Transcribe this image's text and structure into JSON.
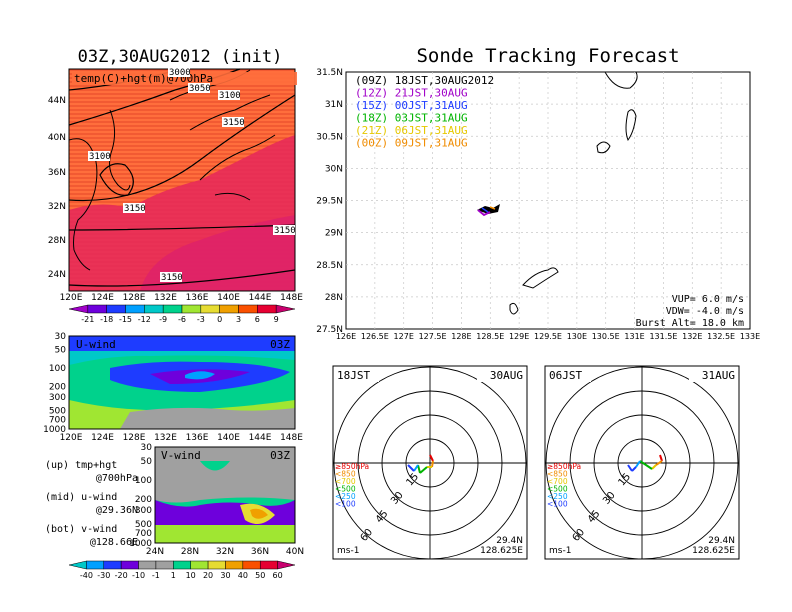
{
  "left": {
    "main_title": "03Z,30AUG2012 (init)",
    "map_label": "temp(C)+hgt(m)@700hPa",
    "lat_ticks": [
      "44N",
      "40N",
      "36N",
      "32N",
      "28N",
      "24N"
    ],
    "lon_ticks": [
      "120E",
      "124E",
      "128E",
      "132E",
      "136E",
      "140E",
      "144E",
      "148E"
    ],
    "hgt_labels": [
      "3000",
      "3050",
      "3100",
      "3150",
      "3100",
      "3150",
      "3150",
      "3150"
    ],
    "temp_colorbar": [
      "-21",
      "-18",
      "-15",
      "-12",
      "-9",
      "-6",
      "-3",
      "0",
      "3",
      "6",
      "9"
    ],
    "temp_colors": [
      "#a000c8",
      "#6e00dc",
      "#1e3cff",
      "#00a0ff",
      "#00c8c8",
      "#00d28c",
      "#a0e632",
      "#e6dc32",
      "#f0a000",
      "#fa5000",
      "#e60032",
      "#c8006e"
    ],
    "u_label": "U-wind",
    "u_time": "03Z",
    "v_label": "V-wind",
    "v_time": "03Z",
    "p_ticks": [
      "30",
      "50",
      "100",
      "200",
      "300",
      "500",
      "700",
      "1000"
    ],
    "v_xticks": [
      "24N",
      "28N",
      "32N",
      "36N",
      "40N"
    ],
    "legend_text": [
      [
        "(up) tmp+hgt",
        "@700hPa"
      ],
      [
        "(mid) u-wind",
        "@29.36N"
      ],
      [
        "(bot) v-wind",
        "@128.66E"
      ]
    ],
    "wind_colorbar": [
      "-40",
      "-30",
      "-20",
      "-10",
      "-1",
      "1",
      "10",
      "20",
      "30",
      "40",
      "50",
      "60"
    ],
    "wind_colors": [
      "#00c8c8",
      "#00a0ff",
      "#1e3cff",
      "#6e00dc",
      "#a0a0a0",
      "#a0a0a0",
      "#00d28c",
      "#a0e632",
      "#e6dc32",
      "#f0a000",
      "#fa5000",
      "#e60032",
      "#c8006e"
    ]
  },
  "right": {
    "title": "Sonde Tracking Forecast",
    "forecast_legend": [
      {
        "text": "(09Z)  18JST,30AUG2012",
        "color": "#000000"
      },
      {
        "text": "(12Z)  21JST,30AUG",
        "color": "#a000c8"
      },
      {
        "text": "(15Z)  00JST,31AUG",
        "color": "#1e3cff"
      },
      {
        "text": "(18Z)  03JST,31AUG",
        "color": "#00b400"
      },
      {
        "text": "(21Z)  06JST,31AUG",
        "color": "#e6c800"
      },
      {
        "text": "(00Z)  09JST,31AUG",
        "color": "#f08c00"
      }
    ],
    "lat_ticks": [
      "31.5N",
      "31N",
      "30.5N",
      "30N",
      "29.5N",
      "29N",
      "28.5N",
      "28N",
      "27.5N"
    ],
    "lon_ticks": [
      "126E",
      "126.5E",
      "127E",
      "127.5E",
      "128E",
      "128.5E",
      "129E",
      "129.5E",
      "130E",
      "130.5E",
      "131E",
      "131.5E",
      "132E",
      "132.5E",
      "133E"
    ],
    "params": [
      "VUP=  6.0  m/s",
      "VDW= -4.0  m/s",
      "Burst Alt=  18.0  km"
    ]
  },
  "hodographs": [
    {
      "left": "18JST",
      "right": "30AUG",
      "lat": "29.4N",
      "lon": "128.625E",
      "unit": "ms-1"
    },
    {
      "left": "06JST",
      "right": "31AUG",
      "lat": "29.4N",
      "lon": "128.625E",
      "unit": "ms-1"
    }
  ],
  "hodo_rings": [
    "15",
    "30",
    "45",
    "60"
  ],
  "hodo_levels": [
    {
      "text": "≥850hPa",
      "color": "#e60000"
    },
    {
      "text": "<850",
      "color": "#f08c00"
    },
    {
      "text": "<700",
      "color": "#e6c800"
    },
    {
      "text": "<500",
      "color": "#00b400"
    },
    {
      "text": "<250",
      "color": "#00a0ff"
    },
    {
      "text": "<100",
      "color": "#1e3cff"
    }
  ]
}
